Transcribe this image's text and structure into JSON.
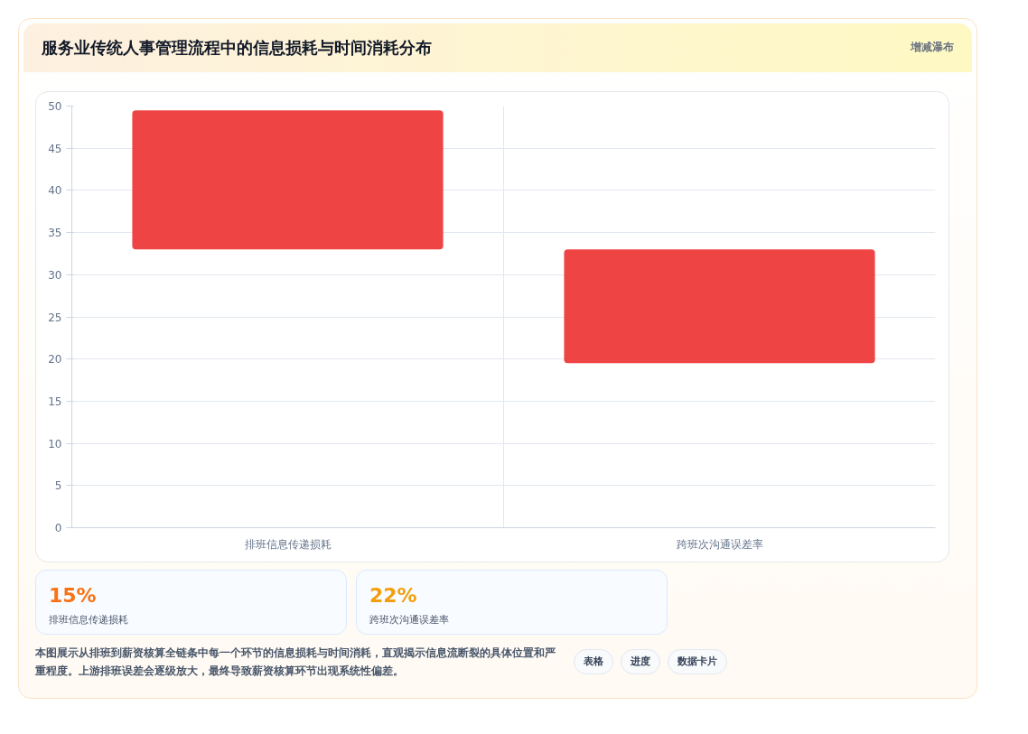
{
  "chart_data": {
    "type": "bar",
    "title": "服务业传统人事管理流程中的信息损耗与时间消耗分布",
    "categories": [
      "排班信息传递损耗",
      "跨班次沟通误差率"
    ],
    "series": [
      {
        "color": "#ef4444",
        "values": [
          16.5,
          13.5
        ],
        "base": [
          33,
          19.5
        ]
      }
    ],
    "ylim": [
      0,
      50
    ],
    "yticks": [
      0,
      5,
      10,
      15,
      20,
      25,
      30,
      35,
      40,
      45,
      50
    ],
    "grid": true,
    "annotations": [
      "增减瀑布",
      "15%",
      "排班信息传递损耗",
      "22%",
      "跨班次沟通误差率",
      "本图展示从排班到薪资核算全链条中每一个环节的信息损耗与时间消耗，直观揭示信息流断裂的具体位置和严重程度。上游排班误差会逐级放大，最终导致薪资核算环节出现系统性偏差。",
      "表格",
      "进度",
      "数据卡片"
    ]
  }
}
